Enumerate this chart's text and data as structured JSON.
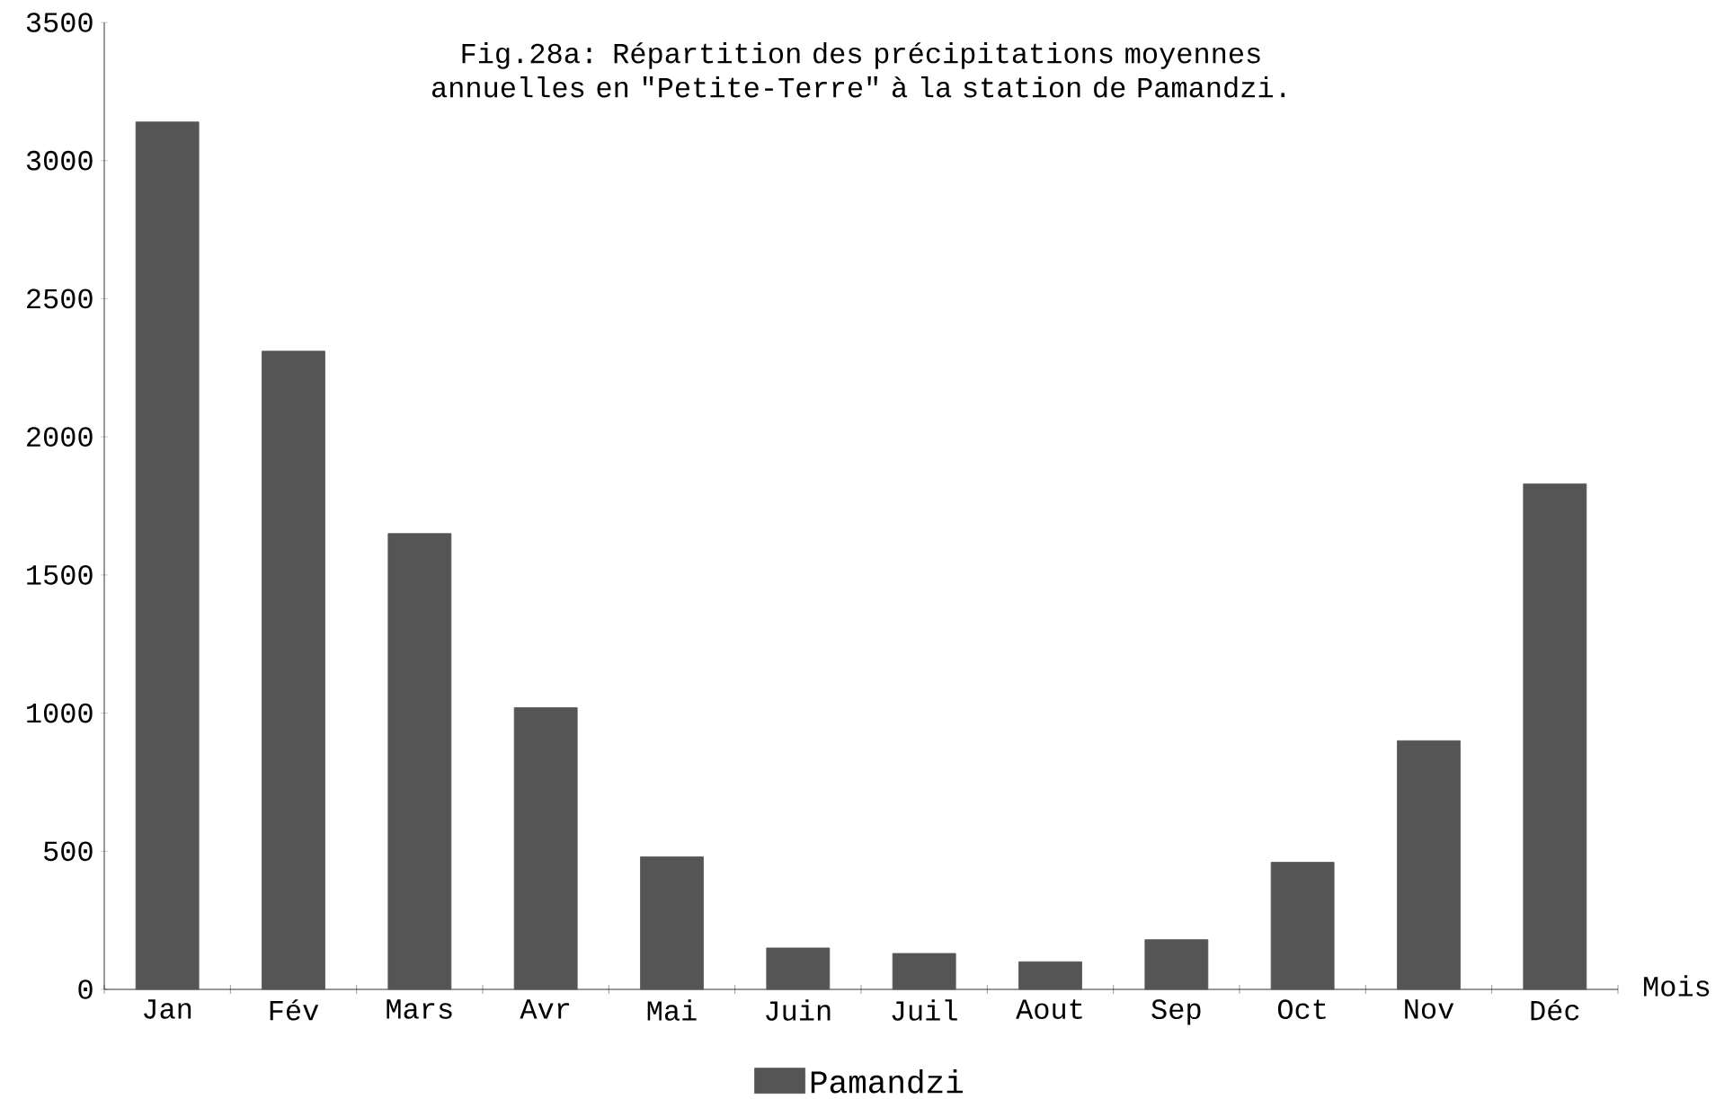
{
  "chart_data": {
    "type": "bar",
    "title": "Fig.28a: Répartition des précipitations moyennes annuelles en \"Petite-Terre\" à la station de Pamandzi.",
    "xlabel": "Mois",
    "categories": [
      "Jan",
      "Fév",
      "Mars",
      "Avr",
      "Mai",
      "Juin",
      "Juil",
      "Aout",
      "Sep",
      "Oct",
      "Nov",
      "Déc"
    ],
    "series": [
      {
        "name": "Pamandzi",
        "color": "#555555",
        "values": [
          3140,
          2310,
          1650,
          1020,
          480,
          150,
          130,
          100,
          180,
          460,
          900,
          1830
        ]
      }
    ],
    "ylim": [
      0,
      3500
    ],
    "yticks": [
      0,
      500,
      1000,
      1500,
      2000,
      2500,
      3000,
      3500
    ],
    "legend": "bottom"
  }
}
